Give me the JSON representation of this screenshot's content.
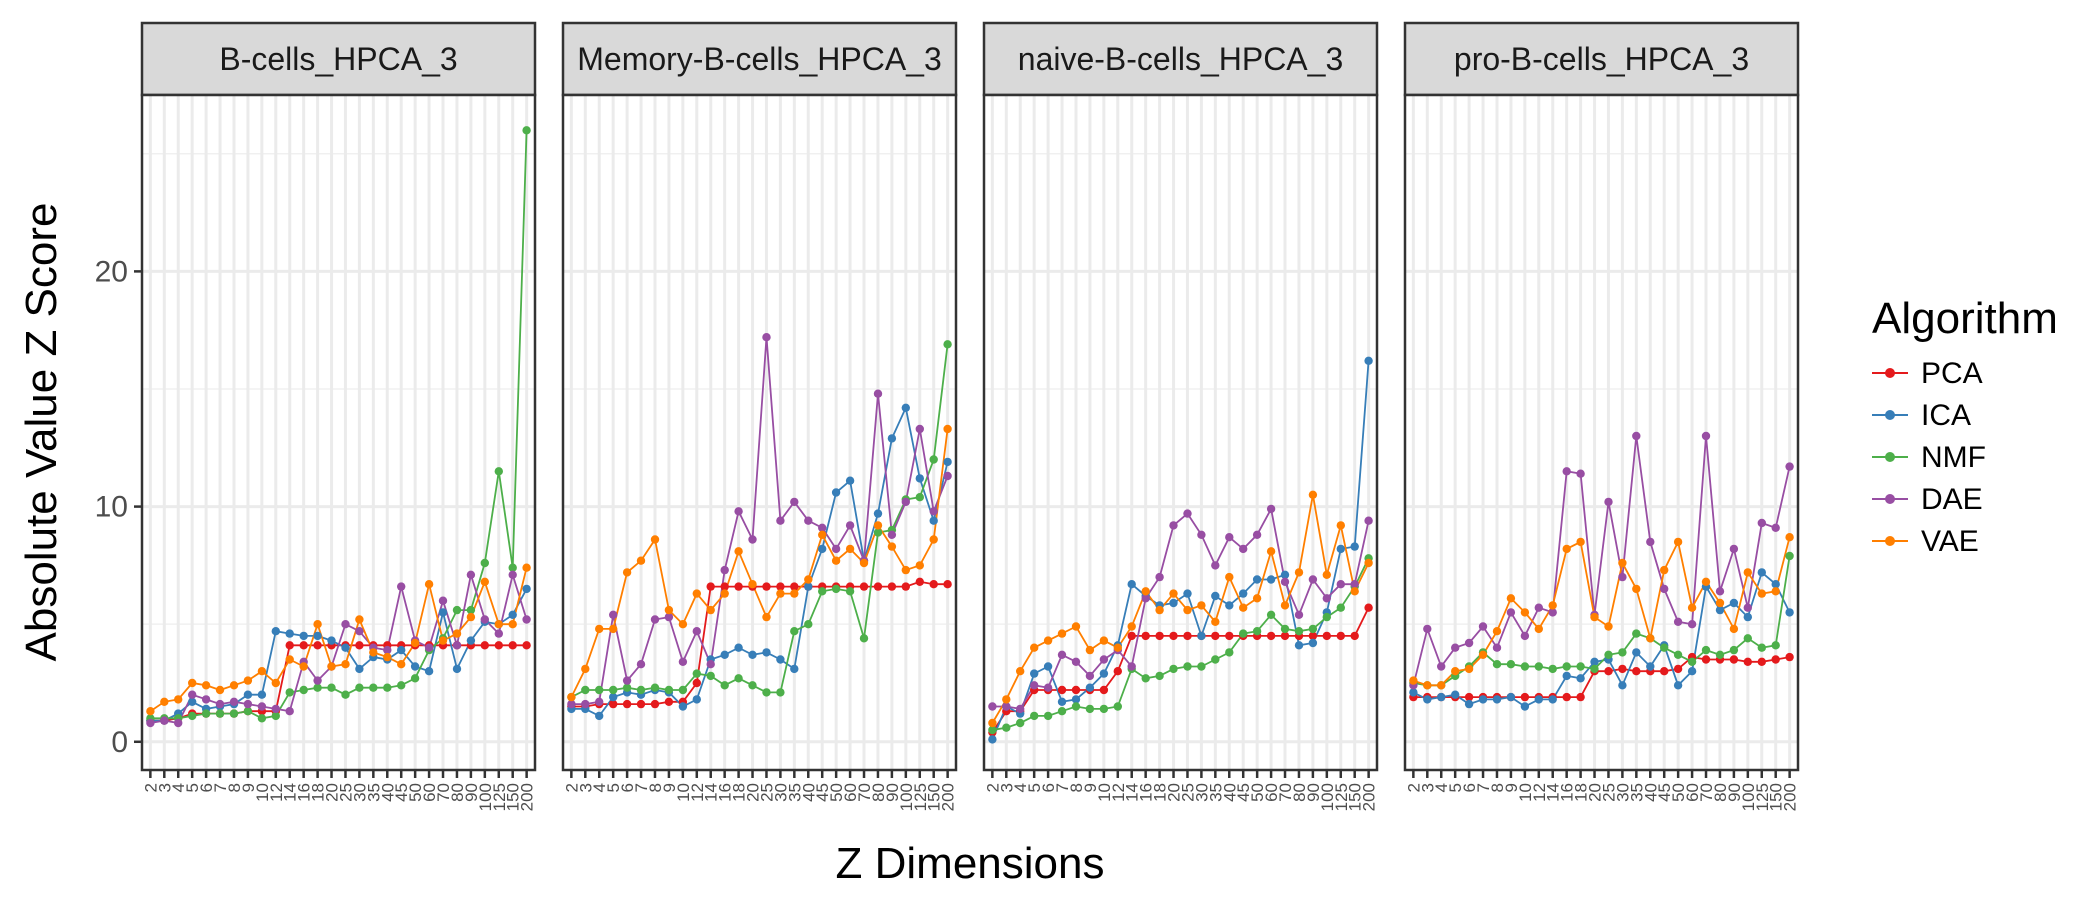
{
  "chart_data": {
    "type": "line",
    "xlabel": "Z Dimensions",
    "ylabel": "Absolute Value Z Score",
    "ylim": [
      -1.2,
      27.5
    ],
    "yticks": [
      0,
      10,
      20
    ],
    "grid": true,
    "legend_title": "Algorithm",
    "legend_position": "right",
    "categories": [
      "2",
      "3",
      "4",
      "5",
      "6",
      "7",
      "8",
      "9",
      "10",
      "12",
      "14",
      "16",
      "18",
      "20",
      "25",
      "30",
      "35",
      "40",
      "45",
      "50",
      "60",
      "70",
      "80",
      "90",
      "100",
      "125",
      "150",
      "200"
    ],
    "series_colors": {
      "PCA": "#e41a1c",
      "ICA": "#377eb8",
      "NMF": "#4daf4a",
      "DAE": "#984ea3",
      "VAE": "#ff7f00"
    },
    "panels": [
      {
        "title": "B-cells_HPCA_3",
        "series": [
          {
            "name": "PCA",
            "values": [
              0.9,
              0.9,
              1.0,
              1.2,
              1.2,
              1.2,
              1.2,
              1.3,
              1.3,
              1.3,
              4.1,
              4.1,
              4.1,
              4.1,
              4.1,
              4.1,
              4.1,
              4.1,
              4.1,
              4.1,
              4.1,
              4.1,
              4.1,
              4.1,
              4.1,
              4.1,
              4.1,
              4.1
            ]
          },
          {
            "name": "ICA",
            "values": [
              0.9,
              0.9,
              1.2,
              1.7,
              1.4,
              1.5,
              1.6,
              2.0,
              2.0,
              4.7,
              4.6,
              4.5,
              4.5,
              4.3,
              4.0,
              3.1,
              3.6,
              3.5,
              3.9,
              3.2,
              3.0,
              5.5,
              3.1,
              4.3,
              5.1,
              5.0,
              5.4,
              6.5
            ]
          },
          {
            "name": "NMF",
            "values": [
              1.0,
              1.0,
              1.0,
              1.1,
              1.2,
              1.2,
              1.2,
              1.3,
              1.0,
              1.1,
              2.1,
              2.2,
              2.3,
              2.3,
              2.0,
              2.3,
              2.3,
              2.3,
              2.4,
              2.7,
              3.9,
              4.4,
              5.6,
              5.6,
              7.6,
              11.5,
              7.4,
              26.0
            ]
          },
          {
            "name": "DAE",
            "values": [
              0.8,
              0.9,
              0.8,
              2.0,
              1.8,
              1.6,
              1.7,
              1.6,
              1.5,
              1.4,
              1.3,
              3.4,
              2.6,
              3.2,
              5.0,
              4.7,
              4.0,
              3.9,
              6.6,
              4.3,
              4.0,
              6.0,
              4.1,
              7.1,
              5.2,
              4.6,
              7.1,
              5.2
            ]
          },
          {
            "name": "VAE",
            "values": [
              1.3,
              1.7,
              1.8,
              2.5,
              2.4,
              2.2,
              2.4,
              2.6,
              3.0,
              2.5,
              3.5,
              3.2,
              5.0,
              3.2,
              3.3,
              5.2,
              3.8,
              3.6,
              3.3,
              4.2,
              6.7,
              4.3,
              4.6,
              5.3,
              6.8,
              5.0,
              5.0,
              7.4
            ]
          }
        ]
      },
      {
        "title": "Memory-B-cells_HPCA_3",
        "series": [
          {
            "name": "PCA",
            "values": [
              1.5,
              1.5,
              1.6,
              1.6,
              1.6,
              1.6,
              1.6,
              1.7,
              1.7,
              2.5,
              6.6,
              6.6,
              6.6,
              6.6,
              6.6,
              6.6,
              6.6,
              6.6,
              6.6,
              6.6,
              6.6,
              6.6,
              6.6,
              6.6,
              6.6,
              6.8,
              6.7,
              6.7
            ]
          },
          {
            "name": "ICA",
            "values": [
              1.4,
              1.4,
              1.1,
              1.9,
              2.1,
              2.0,
              2.2,
              2.1,
              1.5,
              1.8,
              3.5,
              3.7,
              4.0,
              3.7,
              3.8,
              3.5,
              3.1,
              6.6,
              8.2,
              10.6,
              11.1,
              7.7,
              9.7,
              12.9,
              14.2,
              11.2,
              9.4,
              11.9
            ]
          },
          {
            "name": "NMF",
            "values": [
              1.9,
              2.2,
              2.2,
              2.2,
              2.3,
              2.2,
              2.3,
              2.2,
              2.2,
              2.9,
              2.8,
              2.4,
              2.7,
              2.4,
              2.1,
              2.1,
              4.7,
              5.0,
              6.4,
              6.5,
              6.4,
              4.4,
              8.9,
              9.0,
              10.3,
              10.4,
              12.0,
              16.9
            ]
          },
          {
            "name": "DAE",
            "values": [
              1.6,
              1.6,
              1.7,
              5.4,
              2.6,
              3.3,
              5.2,
              5.3,
              3.4,
              4.7,
              3.3,
              7.3,
              9.8,
              8.6,
              17.2,
              9.4,
              10.2,
              9.4,
              9.1,
              8.2,
              9.2,
              7.7,
              14.8,
              8.8,
              10.2,
              13.3,
              9.8,
              11.3
            ]
          },
          {
            "name": "VAE",
            "values": [
              1.9,
              3.1,
              4.8,
              4.8,
              7.2,
              7.7,
              8.6,
              5.6,
              5.0,
              6.3,
              5.6,
              6.3,
              8.1,
              6.7,
              5.3,
              6.3,
              6.3,
              6.9,
              8.8,
              7.7,
              8.2,
              7.6,
              9.2,
              8.3,
              7.3,
              7.5,
              8.6,
              13.3
            ]
          }
        ]
      },
      {
        "title": "naive-B-cells_HPCA_3",
        "series": [
          {
            "name": "PCA",
            "values": [
              0.4,
              1.3,
              1.3,
              2.2,
              2.2,
              2.2,
              2.2,
              2.2,
              2.2,
              3.0,
              4.5,
              4.5,
              4.5,
              4.5,
              4.5,
              4.5,
              4.5,
              4.5,
              4.5,
              4.5,
              4.5,
              4.5,
              4.5,
              4.5,
              4.5,
              4.5,
              4.5,
              5.7
            ]
          },
          {
            "name": "ICA",
            "values": [
              0.1,
              1.5,
              1.2,
              2.9,
              3.2,
              1.7,
              1.8,
              2.3,
              2.9,
              4.1,
              6.7,
              6.2,
              5.8,
              5.9,
              6.3,
              4.5,
              6.2,
              5.8,
              6.3,
              6.9,
              6.9,
              7.1,
              4.1,
              4.2,
              5.5,
              8.2,
              8.3,
              16.2
            ]
          },
          {
            "name": "NMF",
            "values": [
              0.5,
              0.6,
              0.8,
              1.1,
              1.1,
              1.3,
              1.5,
              1.4,
              1.4,
              1.5,
              3.1,
              2.7,
              2.8,
              3.1,
              3.2,
              3.2,
              3.5,
              3.8,
              4.6,
              4.7,
              5.4,
              4.8,
              4.7,
              4.8,
              5.3,
              5.7,
              6.6,
              7.8
            ]
          },
          {
            "name": "DAE",
            "values": [
              1.5,
              1.5,
              1.4,
              2.4,
              2.3,
              3.7,
              3.4,
              2.8,
              3.5,
              3.9,
              3.2,
              6.1,
              7.0,
              9.2,
              9.7,
              8.8,
              7.5,
              8.7,
              8.2,
              8.8,
              9.9,
              6.8,
              5.4,
              6.9,
              6.1,
              6.7,
              6.7,
              9.4
            ]
          },
          {
            "name": "VAE",
            "values": [
              0.8,
              1.8,
              3.0,
              4.0,
              4.3,
              4.6,
              4.9,
              3.9,
              4.3,
              4.0,
              4.9,
              6.4,
              5.6,
              6.3,
              5.6,
              5.8,
              5.1,
              7.0,
              5.7,
              6.1,
              8.1,
              5.8,
              7.2,
              10.5,
              7.1,
              9.2,
              6.4,
              7.6
            ]
          }
        ]
      },
      {
        "title": "pro-B-cells_HPCA_3",
        "series": [
          {
            "name": "PCA",
            "values": [
              1.9,
              1.9,
              1.9,
              1.9,
              1.9,
              1.9,
              1.9,
              1.9,
              1.9,
              1.9,
              1.9,
              1.9,
              1.9,
              3.0,
              3.0,
              3.1,
              3.0,
              3.0,
              3.0,
              3.1,
              3.6,
              3.5,
              3.5,
              3.5,
              3.4,
              3.4,
              3.5,
              3.6
            ]
          },
          {
            "name": "ICA",
            "values": [
              2.1,
              1.8,
              1.9,
              2.0,
              1.6,
              1.8,
              1.8,
              1.9,
              1.5,
              1.8,
              1.8,
              2.8,
              2.7,
              3.4,
              3.5,
              2.4,
              3.8,
              3.2,
              4.1,
              2.4,
              3.0,
              6.6,
              5.6,
              5.9,
              5.3,
              7.2,
              6.7,
              5.5
            ]
          },
          {
            "name": "NMF",
            "values": [
              2.5,
              2.4,
              2.4,
              2.8,
              3.2,
              3.8,
              3.3,
              3.3,
              3.2,
              3.2,
              3.1,
              3.2,
              3.2,
              3.1,
              3.7,
              3.8,
              4.6,
              4.4,
              4.0,
              3.7,
              3.4,
              3.9,
              3.7,
              3.9,
              4.4,
              4.0,
              4.1,
              7.9
            ]
          },
          {
            "name": "DAE",
            "values": [
              2.4,
              4.8,
              3.2,
              4.0,
              4.2,
              4.9,
              4.0,
              5.5,
              4.5,
              5.7,
              5.5,
              11.5,
              11.4,
              5.4,
              10.2,
              7.0,
              13.0,
              8.5,
              6.5,
              5.1,
              5.0,
              13.0,
              6.4,
              8.2,
              5.7,
              9.3,
              9.1,
              11.7
            ]
          },
          {
            "name": "VAE",
            "values": [
              2.6,
              2.4,
              2.4,
              3.0,
              3.1,
              3.7,
              4.7,
              6.1,
              5.5,
              4.8,
              5.8,
              8.2,
              8.5,
              5.3,
              4.9,
              7.6,
              6.5,
              4.4,
              7.3,
              8.5,
              5.7,
              6.8,
              5.9,
              4.8,
              7.2,
              6.3,
              6.4,
              8.7
            ]
          }
        ]
      }
    ]
  }
}
